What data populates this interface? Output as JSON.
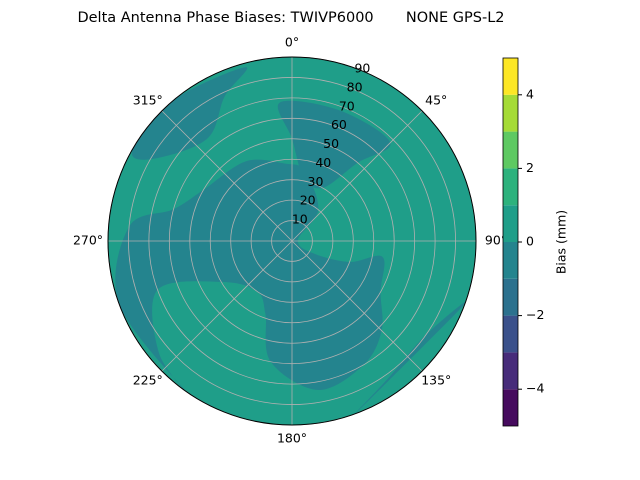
{
  "chart_data": {
    "type": "polar-contour",
    "title": "Delta Antenna Phase Biases: TWIVP6000       NONE GPS-L2",
    "rlim": [
      0,
      90
    ],
    "rticks": [
      10,
      20,
      30,
      40,
      50,
      60,
      70,
      80,
      90
    ],
    "thetaticks": [
      {
        "value": 0,
        "label": "0°"
      },
      {
        "value": 45,
        "label": "45°"
      },
      {
        "value": 90,
        "label": "90°"
      },
      {
        "value": 135,
        "label": "135°"
      },
      {
        "value": 180,
        "label": "180°"
      },
      {
        "value": 225,
        "label": "225°"
      },
      {
        "value": 270,
        "label": "270°"
      },
      {
        "value": 315,
        "label": "315°"
      }
    ],
    "grid": true,
    "colorbar": {
      "label": "Bias (mm)",
      "lim": [
        -5,
        5
      ],
      "levels": [
        -5,
        -4,
        -3,
        -2,
        -1,
        0,
        1,
        2,
        3,
        4,
        5
      ],
      "colors": [
        "#460b5e",
        "#472c7a",
        "#3b518b",
        "#2c718e",
        "#24848e",
        "#1f9e89",
        "#2db27d",
        "#5ec962",
        "#a5db36",
        "#fde725"
      ],
      "ticks": [
        {
          "value": -4,
          "label": "−4"
        },
        {
          "value": -2,
          "label": "−2"
        },
        0,
        2,
        4
      ]
    },
    "regions": [
      {
        "range": [
          0,
          1
        ],
        "points": [
          [
            0,
            90
          ],
          [
            90,
            90
          ],
          [
            180,
            90
          ],
          [
            270,
            90
          ]
        ]
      },
      {
        "range": [
          -1,
          0
        ],
        "points": [
          [
            10,
            35
          ],
          [
            40,
            20
          ],
          [
            80,
            3
          ],
          [
            120,
            12
          ],
          [
            110,
            30
          ],
          [
            100,
            45
          ],
          [
            120,
            50
          ],
          [
            135,
            62
          ],
          [
            150,
            70
          ],
          [
            170,
            74
          ],
          [
            190,
            60
          ],
          [
            200,
            38
          ],
          [
            215,
            30
          ],
          [
            240,
            40
          ],
          [
            250,
            70
          ],
          [
            230,
            85
          ],
          [
            215,
            90
          ],
          [
            250,
            90
          ],
          [
            275,
            80
          ],
          [
            285,
            60
          ],
          [
            300,
            50
          ],
          [
            330,
            45
          ],
          [
            355,
            38
          ]
        ]
      },
      {
        "range": [
          -1,
          0
        ],
        "points": [
          [
            355,
            68
          ],
          [
            20,
            68
          ],
          [
            45,
            68
          ],
          [
            40,
            50
          ],
          [
            30,
            30
          ],
          [
            10,
            32
          ],
          [
            0,
            50
          ]
        ]
      },
      {
        "range": [
          -1,
          0
        ],
        "points": [
          [
            300,
            80
          ],
          [
            320,
            65
          ],
          [
            335,
            78
          ],
          [
            345,
            88
          ],
          [
            320,
            90
          ],
          [
            300,
            90
          ]
        ]
      },
      {
        "range": [
          -1,
          0
        ],
        "points": [
          [
            110,
            90
          ],
          [
            125,
            80
          ],
          [
            145,
            82
          ],
          [
            160,
            90
          ]
        ]
      }
    ]
  }
}
